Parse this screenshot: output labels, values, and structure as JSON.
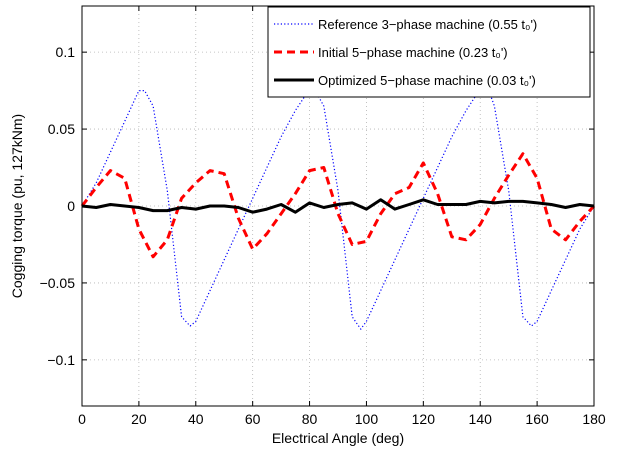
{
  "chart_data": {
    "type": "line",
    "xlabel": "Electrical Angle (deg)",
    "ylabel": "Cogging torque (pu, 127kNm)",
    "xlim": [
      0,
      180
    ],
    "ylim": [
      -0.13,
      0.13
    ],
    "xticks": [
      0,
      20,
      40,
      60,
      80,
      100,
      120,
      140,
      160,
      180
    ],
    "yticks": [
      -0.1,
      -0.05,
      0,
      0.05,
      0.1
    ],
    "ytick_labels": [
      "−0.1",
      "−0.05",
      "0",
      "0.05",
      "0.1"
    ],
    "grid": true,
    "legend_position": "top-right",
    "series": [
      {
        "name": "Reference 3−phase machine (0.55 t₀')",
        "color": "#0000ff",
        "style": "dotted",
        "x": [
          0,
          5,
          10,
          15,
          20,
          22,
          25,
          30,
          35,
          38,
          40,
          45,
          50,
          55,
          60,
          65,
          70,
          75,
          80,
          82,
          85,
          90,
          95,
          98,
          100,
          105,
          110,
          115,
          120,
          125,
          130,
          135,
          140,
          143,
          145,
          150,
          155,
          158,
          160,
          165,
          170,
          175,
          180
        ],
        "y": [
          0,
          0.015,
          0.035,
          0.055,
          0.075,
          0.075,
          0.065,
          0.01,
          -0.072,
          -0.078,
          -0.075,
          -0.055,
          -0.035,
          -0.015,
          0.005,
          0.025,
          0.045,
          0.062,
          0.076,
          0.075,
          0.065,
          0.01,
          -0.072,
          -0.08,
          -0.075,
          -0.055,
          -0.035,
          -0.015,
          0.005,
          0.025,
          0.045,
          0.062,
          0.076,
          0.075,
          0.065,
          0.01,
          -0.072,
          -0.078,
          -0.075,
          -0.055,
          -0.035,
          -0.015,
          0
        ]
      },
      {
        "name": "Initial 5−phase machine (0.23 t₀')",
        "color": "#ff0000",
        "style": "dashed",
        "x": [
          0,
          5,
          10,
          15,
          20,
          25,
          30,
          35,
          40,
          45,
          50,
          55,
          60,
          65,
          70,
          75,
          80,
          85,
          90,
          95,
          100,
          105,
          110,
          115,
          120,
          125,
          130,
          135,
          140,
          145,
          150,
          155,
          160,
          165,
          170,
          175,
          180
        ],
        "y": [
          0,
          0.012,
          0.023,
          0.018,
          -0.015,
          -0.033,
          -0.022,
          0.005,
          0.015,
          0.023,
          0.021,
          -0.008,
          -0.028,
          -0.018,
          -0.005,
          0.008,
          0.023,
          0.025,
          -0.005,
          -0.025,
          -0.023,
          -0.005,
          0.008,
          0.012,
          0.028,
          0.008,
          -0.02,
          -0.022,
          -0.012,
          0.005,
          0.02,
          0.034,
          0.018,
          -0.015,
          -0.022,
          -0.01,
          0
        ]
      },
      {
        "name": "Optimized 5−phase machine (0.03 t₀')",
        "color": "#000000",
        "style": "solid",
        "x": [
          0,
          5,
          10,
          15,
          20,
          25,
          30,
          35,
          40,
          45,
          50,
          55,
          60,
          65,
          70,
          75,
          80,
          85,
          90,
          95,
          100,
          105,
          110,
          115,
          120,
          125,
          130,
          135,
          140,
          145,
          150,
          155,
          160,
          165,
          170,
          175,
          180
        ],
        "y": [
          0,
          -0.001,
          0.001,
          0,
          -0.001,
          -0.003,
          -0.003,
          -0.001,
          -0.002,
          0,
          0,
          -0.001,
          -0.004,
          -0.002,
          0.001,
          -0.004,
          0.002,
          -0.001,
          0.001,
          0.002,
          -0.002,
          0.004,
          -0.002,
          0.001,
          0.004,
          0.001,
          0.001,
          0.001,
          0.003,
          0.002,
          0.003,
          0.003,
          0.002,
          0.001,
          -0.001,
          0.001,
          0
        ]
      }
    ]
  }
}
